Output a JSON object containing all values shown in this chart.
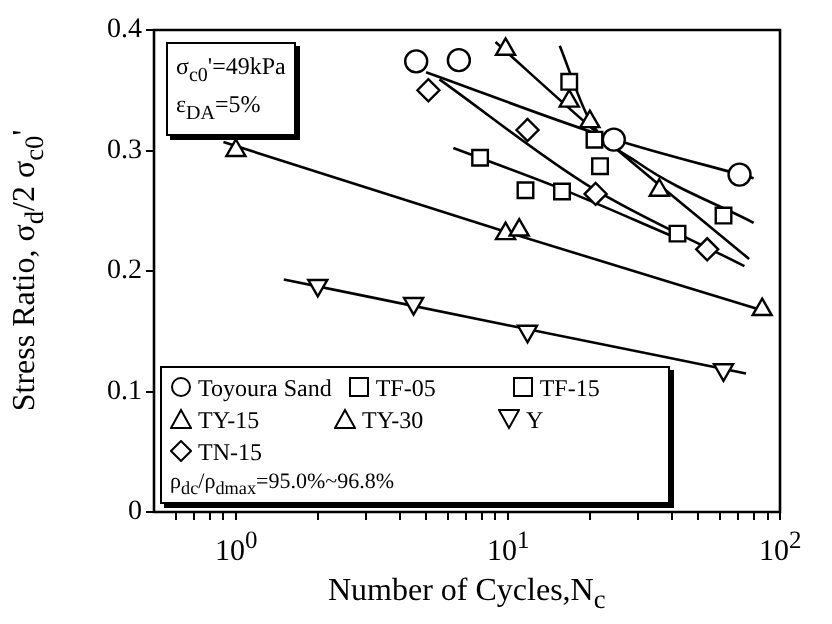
{
  "chart_data": {
    "type": "scatter",
    "xlabel": "Number of Cycles,N$_{c}$",
    "ylabel": "Stress Ratio, σ$_{d}$/2 σ$_{c0}$'",
    "log": "x",
    "grid": false,
    "legend": "bottom left",
    "xlim": [
      0.5,
      100
    ],
    "ylim": [
      0,
      0.4
    ],
    "xticks": [
      {
        "value": 0.6,
        "label": null
      },
      {
        "value": 0.7,
        "label": null
      },
      {
        "value": 0.8,
        "label": null
      },
      {
        "value": 0.9,
        "label": null
      },
      {
        "value": 1,
        "label": "10$^{0}$"
      },
      {
        "value": 2,
        "label": null
      },
      {
        "value": 3,
        "label": null
      },
      {
        "value": 4,
        "label": null
      },
      {
        "value": 5,
        "label": null
      },
      {
        "value": 6,
        "label": null
      },
      {
        "value": 7,
        "label": null
      },
      {
        "value": 8,
        "label": null
      },
      {
        "value": 9,
        "label": null
      },
      {
        "value": 10,
        "label": "10$^{1}$"
      },
      {
        "value": 20,
        "label": null
      },
      {
        "value": 30,
        "label": null
      },
      {
        "value": 40,
        "label": null
      },
      {
        "value": 50,
        "label": null
      },
      {
        "value": 60,
        "label": null
      },
      {
        "value": 70,
        "label": null
      },
      {
        "value": 80,
        "label": null
      },
      {
        "value": 90,
        "label": null
      },
      {
        "value": 100,
        "label": "10$^{2}$"
      }
    ],
    "yticks": [
      {
        "value": 0,
        "label": "0"
      },
      {
        "value": 0.1,
        "label": "0.1"
      },
      {
        "value": 0.2,
        "label": "0.2"
      },
      {
        "value": 0.3,
        "label": "0.3"
      },
      {
        "value": 0.4,
        "label": "0.4"
      }
    ],
    "annotations": [
      "σ$_{c0}$'=49kPa",
      "ε$_{DA}$=5%",
      "ρ$_{dc}$/ρ$_{dmax}$=95.0%~96.8%"
    ],
    "series": [
      {
        "name": "Toyoura Sand",
        "color": "#000000",
        "marker": "circle",
        "x": [
          4.6,
          6.6,
          24.5,
          71
        ],
        "values": [
          0.374,
          0.375,
          0.309,
          0.28
        ]
      },
      {
        "name": "TF-05",
        "color": "#000000",
        "marker": "square",
        "x": [
          16.8,
          20.8,
          21.8,
          62
        ],
        "values": [
          0.357,
          0.309,
          0.287,
          0.246
        ]
      },
      {
        "name": "TF-15",
        "color": "#000000",
        "marker": "square",
        "x": [
          7.9,
          11.6,
          15.8,
          42
        ],
        "values": [
          0.294,
          0.267,
          0.266,
          0.231
        ]
      },
      {
        "name": "TY-15",
        "color": "#000000",
        "marker": "triangle",
        "x": [
          9.8,
          16.8,
          20,
          36
        ],
        "values": [
          0.384,
          0.341,
          0.324,
          0.267
        ]
      },
      {
        "name": "TY-30",
        "color": "#000000",
        "marker": "triangle",
        "x": [
          1,
          9.8,
          11,
          86
        ],
        "values": [
          0.3,
          0.231,
          0.234,
          0.168
        ]
      },
      {
        "name": "Y",
        "color": "#000000",
        "marker": "triangle-down",
        "x": [
          2,
          4.5,
          11.8,
          62
        ],
        "values": [
          0.188,
          0.173,
          0.15,
          0.118
        ]
      },
      {
        "name": "TN-15",
        "color": "#000000",
        "marker": "diamond",
        "x": [
          5.1,
          11.8,
          21,
          54
        ],
        "values": [
          0.35,
          0.317,
          0.264,
          0.218
        ]
      },
      {
        "type": "line",
        "color": "#000000",
        "marker": "none",
        "x": [
          5,
          24,
          80
        ],
        "values": [
          0.365,
          0.31,
          0.277
        ]
      },
      {
        "type": "line",
        "color": "#000000",
        "marker": "none",
        "x": [
          15.5,
          20,
          30,
          80
        ],
        "values": [
          0.387,
          0.325,
          0.29,
          0.24
        ]
      },
      {
        "type": "line",
        "color": "#000000",
        "marker": "none",
        "x": [
          6.3,
          15,
          43
        ],
        "values": [
          0.302,
          0.27,
          0.226
        ]
      },
      {
        "type": "line",
        "color": "#000000",
        "marker": "none",
        "x": [
          9,
          20,
          77
        ],
        "values": [
          0.39,
          0.32,
          0.21
        ]
      },
      {
        "type": "line",
        "color": "#000000",
        "marker": "none",
        "x": [
          5.6,
          20,
          74
        ],
        "values": [
          0.359,
          0.27,
          0.204
        ]
      },
      {
        "type": "line",
        "color": "#000000",
        "marker": "none",
        "x": [
          0.9,
          10,
          90
        ],
        "values": [
          0.307,
          0.232,
          0.166
        ]
      },
      {
        "type": "line",
        "color": "#000000",
        "marker": "none",
        "x": [
          1.5,
          10,
          75
        ],
        "values": [
          0.193,
          0.155,
          0.115
        ]
      }
    ]
  }
}
